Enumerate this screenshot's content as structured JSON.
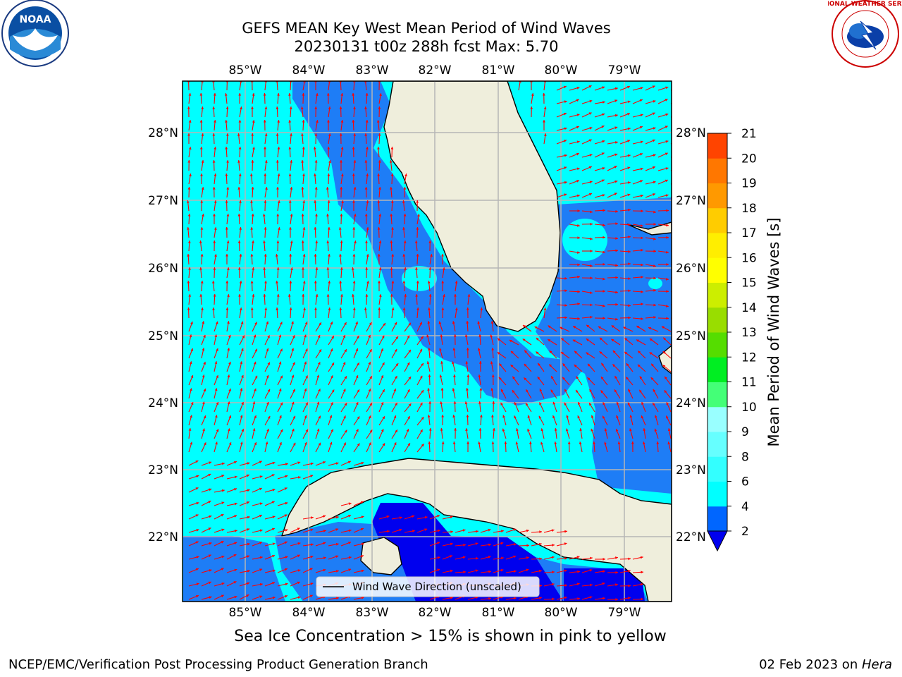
{
  "header": {
    "title_line1": "GEFS MEAN Key West Mean Period of Wind Waves",
    "title_line2": "20230131 t00z 288h fcst   Max: 5.70"
  },
  "logos": {
    "noaa_text": "NOAA",
    "nws_text": "NATIONAL WEATHER SERVICE"
  },
  "map": {
    "lon_labels": [
      "85°W",
      "84°W",
      "83°W",
      "82°W",
      "81°W",
      "80°W",
      "79°W"
    ],
    "lat_labels": [
      "28°N",
      "27°N",
      "26°N",
      "25°N",
      "24°N",
      "23°N",
      "22°N"
    ],
    "legend_label": "Wind Wave Direction (unscaled)"
  },
  "colorbar": {
    "label": "Mean Period of Wind Waves [s]",
    "ticks": [
      "2",
      "4",
      "6",
      "8",
      "9",
      "10",
      "11",
      "12",
      "13",
      "14",
      "15",
      "16",
      "17",
      "18",
      "19",
      "20",
      "21"
    ],
    "colors": [
      "#0066ff",
      "#00ffff",
      "#33ffff",
      "#66ffff",
      "#99ffff",
      "#44ff77",
      "#00ee22",
      "#55dd00",
      "#99dd00",
      "#ccee00",
      "#ffff00",
      "#ffee00",
      "#ffcc00",
      "#ff9900",
      "#ff7700",
      "#ff4400",
      "#ff1100"
    ]
  },
  "colors": {
    "ocean_light": "#00ffff",
    "ocean_mid": "#1e7df6",
    "ocean_deep": "#0000ee",
    "land": "#efeedc",
    "arrow": "#ff0000"
  },
  "footer": {
    "sea_ice_note": "Sea Ice Concentration > 15% is shown in pink to yellow",
    "left": "NCEP/EMC/Verification Post Processing Product Generation Branch",
    "right_prefix": "02 Feb 2023 on ",
    "right_machine": "Hera"
  }
}
